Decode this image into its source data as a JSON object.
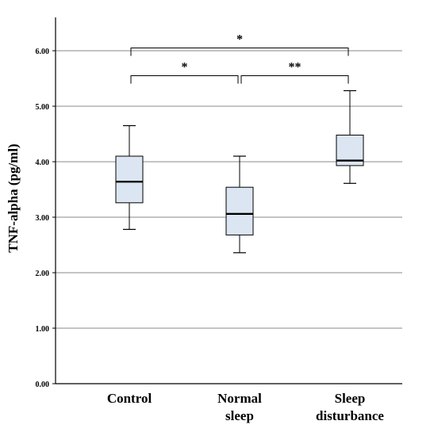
{
  "chart_data": {
    "type": "box",
    "title": "",
    "xlabel": "",
    "ylabel": "TNF-alpha (pg/ml)",
    "ylim": [
      0,
      6.6
    ],
    "y_ticks": [
      0,
      1,
      2,
      3,
      4,
      5,
      6
    ],
    "y_tick_labels": [
      "0.00",
      "1.00",
      "2.00",
      "3.00",
      "4.00",
      "5.00",
      "6.00"
    ],
    "grid": "horizontal",
    "box_fill": "#dce6f2",
    "categories": [
      {
        "label_lines": [
          "Control"
        ],
        "min": 2.78,
        "q1": 3.26,
        "median": 3.64,
        "q3": 4.1,
        "max": 4.65
      },
      {
        "label_lines": [
          "Normal",
          "sleep"
        ],
        "min": 2.36,
        "q1": 2.68,
        "median": 3.06,
        "q3": 3.54,
        "max": 4.1
      },
      {
        "label_lines": [
          "Sleep",
          "disturbance"
        ],
        "min": 3.61,
        "q1": 3.93,
        "median": 4.02,
        "q3": 4.48,
        "max": 5.28
      }
    ],
    "significance": [
      {
        "from": 0,
        "to": 2,
        "y": 6.05,
        "label": "*"
      },
      {
        "from": 0,
        "to": 1,
        "y": 5.55,
        "label": "*"
      },
      {
        "from": 1,
        "to": 2,
        "y": 5.55,
        "label": "**"
      }
    ]
  }
}
